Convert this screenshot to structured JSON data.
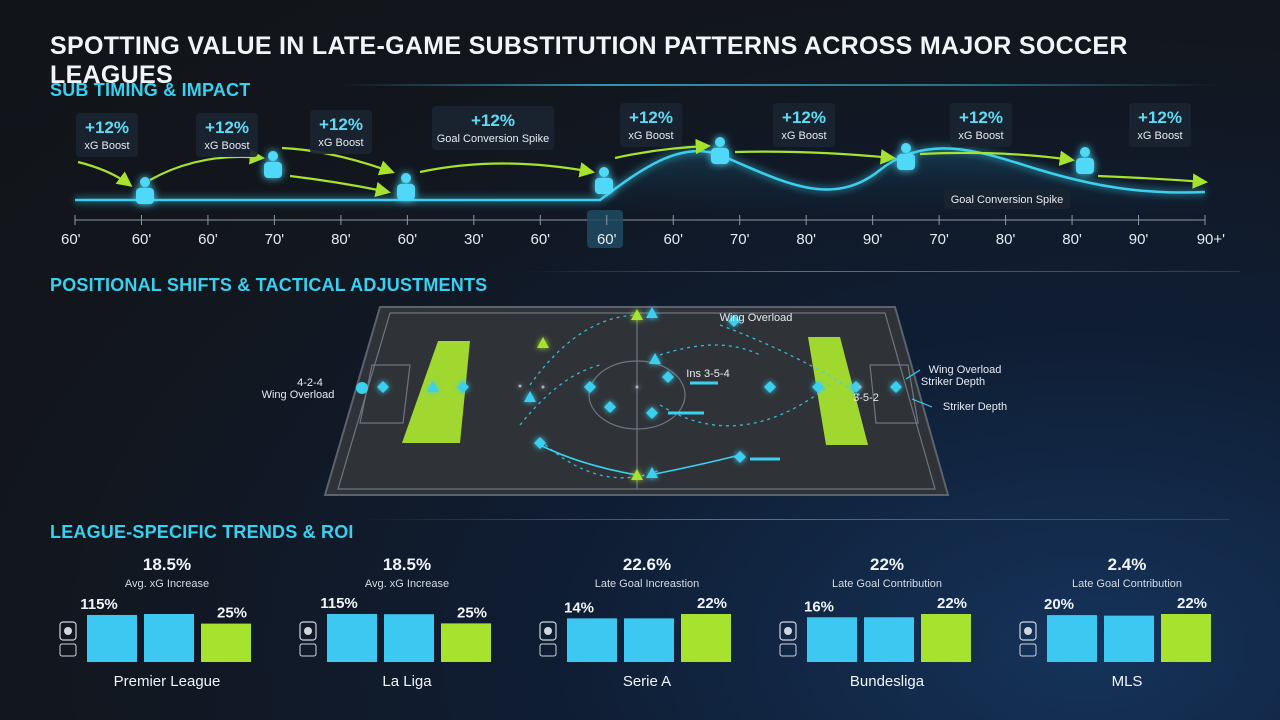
{
  "title": "SPOTTING VALUE IN LATE-GAME SUBSTITUTION PATTERNS ACROSS MAJOR SOCCER LEAGUES",
  "sections": {
    "timing": "SUB TIMING & IMPACT",
    "positional": "POSITIONAL SHIFTS & TACTICAL ADJUSTMENTS",
    "league": "LEAGUE-SPECIFIC TRENDS & ROI"
  },
  "timeline": {
    "ticks": [
      "60'",
      "60'",
      "60'",
      "70'",
      "80'",
      "60'",
      "30'",
      "60'",
      "60'",
      "60'",
      "70'",
      "80'",
      "90'",
      "70'",
      "80'",
      "80'",
      "90'",
      "90+'"
    ],
    "highlighted_tick_index": 8,
    "callouts": [
      {
        "value": "+12%",
        "label": "xG Boost"
      },
      {
        "value": "+12%",
        "label": "xG Boost"
      },
      {
        "value": "+12%",
        "label": "xG Boost"
      },
      {
        "value": "+12%",
        "label": "Goal Conversion Spike"
      },
      {
        "value": "+12%",
        "label": "xG Boost"
      },
      {
        "value": "+12%",
        "label": "xG Boost"
      },
      {
        "value": "+12%",
        "label": "xG Boost"
      },
      {
        "value": "+12%",
        "label": "xG Boost"
      }
    ],
    "bottom_note": "Goal Conversion Spike"
  },
  "pitch": {
    "left_formation": "4-2-4",
    "left_label": "Wing Overload",
    "top_label": "Wing Overload",
    "center_formation": "Ins 3-5-4",
    "right_formation": "3-5-2",
    "right_label_1": "Wing Overload",
    "right_label_2": "Striker Depth",
    "right_label_3": "Striker Depth"
  },
  "colors": {
    "cyan": "#3ad0ef",
    "lime": "#a6e22e",
    "bar_cyan": "#3cc8f0"
  },
  "chart_data": {
    "type": "bar",
    "title": "LEAGUE-SPECIFIC TRENDS & ROI",
    "leagues": [
      {
        "name": "Premier League",
        "headline": "18.5%",
        "metric": "Avg. xG Increase",
        "bar_labels": [
          "115%",
          "",
          "25%"
        ],
        "values": [
          115,
          125,
          25
        ]
      },
      {
        "name": "La Liga",
        "headline": "18.5%",
        "metric": "Avg. xG Increase",
        "bar_labels": [
          "115%",
          "",
          "25%"
        ],
        "values": [
          115,
          113,
          25
        ]
      },
      {
        "name": "Serie A",
        "headline": "22.6%",
        "metric": "Late Goal Increastion",
        "bar_labels": [
          "14%",
          "",
          "22%"
        ],
        "values": [
          14,
          14,
          22
        ]
      },
      {
        "name": "Bundesliga",
        "headline": "22%",
        "metric": "Late Goal Contribution",
        "bar_labels": [
          "16%",
          "",
          "22%"
        ],
        "values": [
          16,
          16,
          22
        ]
      },
      {
        "name": "MLS",
        "headline": "2.4%",
        "metric": "Late Goal Contribution",
        "bar_labels": [
          "20%",
          "",
          "22%"
        ],
        "values": [
          20,
          19,
          22
        ]
      }
    ]
  }
}
